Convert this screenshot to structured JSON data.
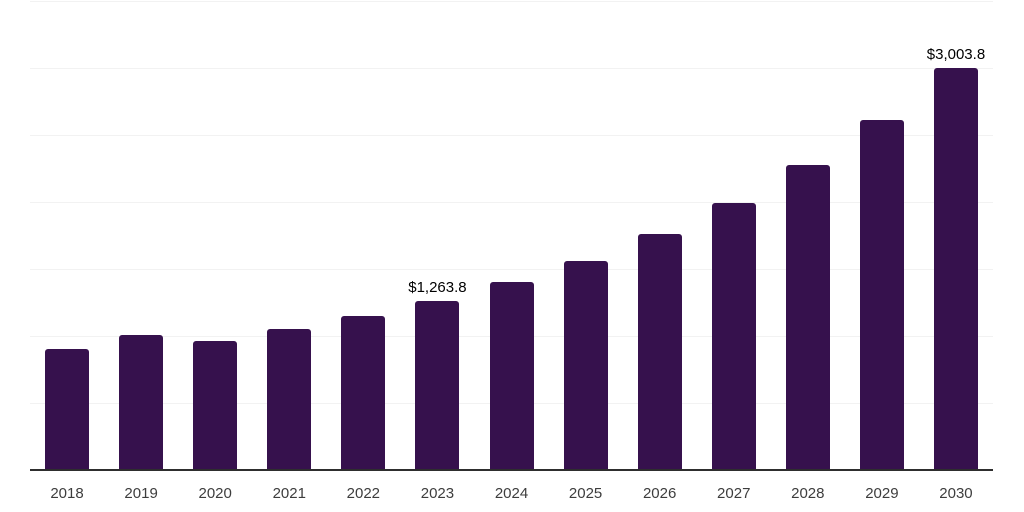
{
  "chart_data": {
    "type": "bar",
    "title": "",
    "xlabel": "",
    "ylabel": "",
    "categories": [
      "2018",
      "2019",
      "2020",
      "2021",
      "2022",
      "2023",
      "2024",
      "2025",
      "2026",
      "2027",
      "2028",
      "2029",
      "2030"
    ],
    "values": [
      900,
      1005,
      960,
      1050,
      1150,
      1263.8,
      1405,
      1560,
      1760,
      1995,
      2275,
      2610,
      3003.8
    ],
    "value_prefix": "$",
    "data_labels": [
      {
        "category": "2023",
        "text": "$1,263.8"
      },
      {
        "category": "2030",
        "text": "$3,003.8"
      }
    ],
    "ylim": [
      0,
      3500
    ],
    "grid_step": 500,
    "grid": true,
    "legend": "none",
    "bar_color": "#36114d",
    "axis_line_color": "#2e2e2e",
    "gridline_color": "#f2f2f2",
    "data_label_color": "#000000",
    "tick_label_color": "#3d3d3d",
    "background_color": "#ffffff"
  }
}
